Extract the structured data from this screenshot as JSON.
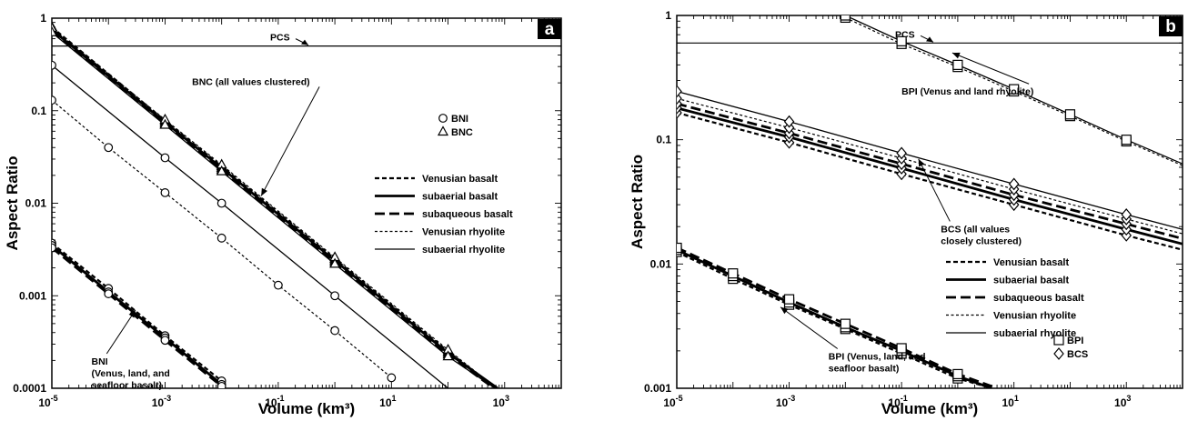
{
  "chart_data": [
    {
      "type": "line",
      "panel_label": "a",
      "xlabel": "Volume (km³)",
      "ylabel": "Aspect Ratio",
      "x_scale": "log",
      "y_scale": "log",
      "xlim": [
        1e-05,
        10000
      ],
      "ylim": [
        0.0001,
        1
      ],
      "x_ticks": [
        {
          "v": 1e-05,
          "b": "10",
          "e": "-5"
        },
        {
          "v": 0.001,
          "b": "10",
          "e": "-3"
        },
        {
          "v": 0.1,
          "b": "10",
          "e": "-1"
        },
        {
          "v": 10,
          "b": "10",
          "e": "1"
        },
        {
          "v": 1000,
          "b": "10",
          "e": "3"
        }
      ],
      "y_ticks": [
        {
          "v": 1,
          "t": "1"
        },
        {
          "v": 0.1,
          "t": "0.1"
        },
        {
          "v": 0.01,
          "t": "0.01"
        },
        {
          "v": 0.001,
          "t": "0.001"
        },
        {
          "v": 0.0001,
          "t": "0.0001"
        }
      ],
      "hline": {
        "y": 0.5,
        "label": "PCS"
      },
      "series": [
        {
          "group": "BNC",
          "name": "Venusian basalt",
          "style": "vbasalt",
          "marker": "triangle",
          "x": [
            1e-05,
            0.001,
            0.01,
            1,
            100,
            700
          ],
          "y": [
            0.8,
            0.078,
            0.025,
            0.0025,
            0.00025,
            0.0001
          ]
        },
        {
          "group": "BNC",
          "name": "subaerial basalt",
          "style": "sbasalt",
          "marker": "triangle",
          "x": [
            1e-05,
            0.001,
            0.01,
            1,
            100,
            750
          ],
          "y": [
            0.75,
            0.075,
            0.024,
            0.0024,
            0.00024,
            0.0001
          ]
        },
        {
          "group": "BNC",
          "name": "subaqueous basalt",
          "style": "qbasalt",
          "marker": "triangle",
          "x": [
            1e-05,
            0.001,
            0.01,
            1,
            100,
            650
          ],
          "y": [
            0.72,
            0.072,
            0.023,
            0.0023,
            0.00023,
            0.0001
          ]
        },
        {
          "group": "BNC",
          "name": "Venusian rhyolite",
          "style": "vrhyo",
          "marker": "triangle",
          "x": [
            1e-05,
            0.001,
            0.01,
            1,
            100,
            720
          ],
          "y": [
            0.78,
            0.08,
            0.026,
            0.0026,
            0.00026,
            0.0001
          ]
        },
        {
          "group": "BNC",
          "name": "subaerial rhyolite",
          "style": "srhyo",
          "marker": "triangle",
          "x": [
            1e-05,
            0.001,
            0.01,
            1,
            100,
            680
          ],
          "y": [
            0.7,
            0.07,
            0.022,
            0.0022,
            0.00022,
            0.0001
          ]
        },
        {
          "group": "BNI",
          "name": "subaerial rhyolite",
          "style": "srhyo",
          "marker": "circle",
          "x": [
            1e-05,
            0.001,
            0.01,
            1,
            100
          ],
          "y": [
            0.31,
            0.031,
            0.01,
            0.001,
            0.0001
          ]
        },
        {
          "group": "BNI",
          "name": "Venusian rhyolite",
          "style": "vrhyo",
          "marker": "circle",
          "x": [
            1e-05,
            0.0001,
            0.001,
            0.01,
            0.1,
            1,
            10
          ],
          "y": [
            0.13,
            0.04,
            0.013,
            0.0042,
            0.0013,
            0.00042,
            0.00013
          ]
        },
        {
          "group": "BNI basalt",
          "name": "Venusian basalt",
          "style": "vbasalt",
          "marker": "circle",
          "x": [
            1e-05,
            0.0001,
            0.001,
            0.01
          ],
          "y": [
            0.0037,
            0.0012,
            0.00037,
            0.00012
          ]
        },
        {
          "group": "BNI basalt",
          "name": "subaerial basalt",
          "style": "sbasalt",
          "marker": "circle",
          "x": [
            1e-05,
            0.0001,
            0.001,
            0.01
          ],
          "y": [
            0.0035,
            0.0011,
            0.00035,
            0.00011
          ]
        },
        {
          "group": "BNI basalt",
          "name": "subaqueous basalt",
          "style": "qbasalt",
          "marker": "circle",
          "x": [
            1e-05,
            0.0001,
            0.001,
            0.01
          ],
          "y": [
            0.0033,
            0.00105,
            0.00033,
            0.000105
          ]
        }
      ],
      "legend": {
        "markers": [
          {
            "shape": "circle",
            "label": "BNI"
          },
          {
            "shape": "triangle",
            "label": "BNC"
          }
        ],
        "lines": [
          {
            "style": "vbasalt",
            "label": "Venusian basalt"
          },
          {
            "style": "sbasalt",
            "label": "subaerial basalt"
          },
          {
            "style": "qbasalt",
            "label": "subaqueous basalt"
          },
          {
            "style": "vrhyo",
            "label": "Venusian rhyolite"
          },
          {
            "style": "srhyo",
            "label": "subaerial rhyolite"
          }
        ]
      },
      "annotations": [
        {
          "lines": [
            "BNC (all values clustered)"
          ],
          "text_at": [
            0.003,
            0.19
          ],
          "arrow_to": [
            0.05,
            0.012
          ]
        },
        {
          "lines": [
            "BNI",
            "(Venus, land, and",
            "seafloor basalt)"
          ],
          "text_at": [
            5e-05,
            0.00018
          ],
          "arrow_to": [
            0.0003,
            0.0007
          ]
        }
      ]
    },
    {
      "type": "line",
      "panel_label": "b",
      "xlabel": "Volume (km³)",
      "ylabel": "Aspect Ratio",
      "x_scale": "log",
      "y_scale": "log",
      "xlim": [
        1e-05,
        10000
      ],
      "ylim": [
        0.001,
        1
      ],
      "x_ticks": [
        {
          "v": 1e-05,
          "b": "10",
          "e": "-5"
        },
        {
          "v": 0.001,
          "b": "10",
          "e": "-3"
        },
        {
          "v": 0.1,
          "b": "10",
          "e": "-1"
        },
        {
          "v": 10,
          "b": "10",
          "e": "1"
        },
        {
          "v": 1000,
          "b": "10",
          "e": "3"
        }
      ],
      "y_ticks": [
        {
          "v": 1,
          "t": "1"
        },
        {
          "v": 0.1,
          "t": "0.1"
        },
        {
          "v": 0.01,
          "t": "0.01"
        },
        {
          "v": 0.001,
          "t": "0.001"
        }
      ],
      "hline": {
        "y": 0.6,
        "label": "PCS"
      },
      "series": [
        {
          "group": "BPI rhyolite",
          "name": "Venusian rhyolite",
          "style": "vrhyo",
          "marker": "square",
          "x": [
            0.01,
            0.1,
            1,
            10,
            100,
            1000,
            10000
          ],
          "y": [
            0.96,
            0.59,
            0.385,
            0.245,
            0.155,
            0.097,
            0.062
          ]
        },
        {
          "group": "BPI rhyolite",
          "name": "subaerial rhyolite",
          "style": "srhyo",
          "marker": "square",
          "x": [
            0.01,
            0.1,
            1,
            10,
            100,
            1000,
            10000
          ],
          "y": [
            1.0,
            0.62,
            0.4,
            0.255,
            0.16,
            0.1,
            0.064
          ]
        },
        {
          "group": "BCS",
          "name": "Venusian basalt",
          "style": "vbasalt",
          "marker": "diamond",
          "x": [
            1e-05,
            0.001,
            0.1,
            10,
            1000,
            10000
          ],
          "y": [
            0.165,
            0.095,
            0.053,
            0.03,
            0.017,
            0.013
          ]
        },
        {
          "group": "BCS",
          "name": "subaerial basalt",
          "style": "sbasalt",
          "marker": "diamond",
          "x": [
            1e-05,
            0.001,
            0.1,
            10,
            1000,
            10000
          ],
          "y": [
            0.18,
            0.105,
            0.059,
            0.033,
            0.019,
            0.0145
          ]
        },
        {
          "group": "BCS",
          "name": "subaqueous basalt",
          "style": "qbasalt",
          "marker": "diamond",
          "x": [
            1e-05,
            0.001,
            0.1,
            10,
            1000,
            10000
          ],
          "y": [
            0.195,
            0.113,
            0.064,
            0.036,
            0.021,
            0.016
          ]
        },
        {
          "group": "BCS",
          "name": "Venusian rhyolite",
          "style": "vrhyo",
          "marker": "diamond",
          "x": [
            1e-05,
            0.001,
            0.1,
            10,
            1000,
            10000
          ],
          "y": [
            0.215,
            0.125,
            0.071,
            0.04,
            0.023,
            0.0175
          ]
        },
        {
          "group": "BCS",
          "name": "subaerial rhyolite",
          "style": "srhyo",
          "marker": "diamond",
          "x": [
            1e-05,
            0.001,
            0.1,
            10,
            1000,
            10000
          ],
          "y": [
            0.245,
            0.14,
            0.078,
            0.044,
            0.025,
            0.019
          ]
        },
        {
          "group": "BPI basalt",
          "name": "Venusian basalt",
          "style": "vbasalt",
          "marker": "square",
          "x": [
            1e-05,
            0.0001,
            0.001,
            0.01,
            0.1,
            1,
            4
          ],
          "y": [
            0.0125,
            0.0076,
            0.0047,
            0.003,
            0.0019,
            0.0012,
            0.001
          ]
        },
        {
          "group": "BPI basalt",
          "name": "subaerial basalt",
          "style": "sbasalt",
          "marker": "square",
          "x": [
            1e-05,
            0.0001,
            0.001,
            0.01,
            0.1,
            1,
            4
          ],
          "y": [
            0.013,
            0.008,
            0.0049,
            0.0031,
            0.002,
            0.00125,
            0.001
          ]
        },
        {
          "group": "BPI basalt",
          "name": "subaqueous basalt",
          "style": "qbasalt",
          "marker": "square",
          "x": [
            1e-05,
            0.0001,
            0.001,
            0.01,
            0.1,
            1,
            5
          ],
          "y": [
            0.0135,
            0.0084,
            0.0052,
            0.0033,
            0.0021,
            0.0013,
            0.001
          ]
        }
      ],
      "legend": {
        "markers": [
          {
            "shape": "square",
            "label": "BPI"
          },
          {
            "shape": "diamond",
            "label": "BCS"
          }
        ],
        "lines": [
          {
            "style": "vbasalt",
            "label": "Venusian basalt"
          },
          {
            "style": "sbasalt",
            "label": "subaerial basalt"
          },
          {
            "style": "qbasalt",
            "label": "subaqueous basalt"
          },
          {
            "style": "vrhyo",
            "label": "Venusian rhyolite"
          },
          {
            "style": "srhyo",
            "label": "subaerial rhyolite"
          }
        ]
      },
      "annotations": [
        {
          "lines": [
            "BPI (Venus and land rhyolite)"
          ],
          "text_at": [
            0.1,
            0.23
          ],
          "arrow_to": [
            0.8,
            0.5
          ]
        },
        {
          "lines": [
            "BCS (all values",
            "closely clustered)"
          ],
          "text_at": [
            0.5,
            0.018
          ],
          "arrow_to": [
            0.2,
            0.07
          ]
        },
        {
          "lines": [
            "BPI (Venus, land, and",
            "seafloor basalt)"
          ],
          "text_at": [
            0.005,
            0.0017
          ],
          "arrow_to": [
            0.0007,
            0.0045
          ]
        }
      ]
    }
  ]
}
